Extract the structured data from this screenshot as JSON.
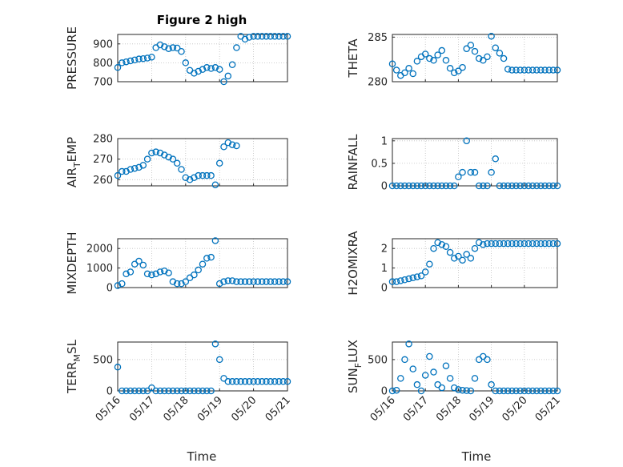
{
  "figure": {
    "title": "Figure 2 high",
    "xlabel": "Time",
    "marker_color": "#0072BD",
    "grid": "dotted",
    "x_tick_labels": [
      "05/16",
      "05/17",
      "05/18",
      "05/19",
      "05/20",
      "05/21"
    ]
  },
  "chart_data": [
    {
      "type": "scatter",
      "ylabel": "PRESSURE",
      "ylabel_sub": "",
      "ylabel_tail": "",
      "ylim": [
        700,
        950
      ],
      "yticks": [
        700,
        800,
        900
      ],
      "x": [
        0.0,
        0.125,
        0.25,
        0.375,
        0.5,
        0.625,
        0.75,
        0.875,
        1.0,
        1.125,
        1.25,
        1.375,
        1.5,
        1.625,
        1.75,
        1.875,
        2.0,
        2.125,
        2.25,
        2.375,
        2.5,
        2.625,
        2.75,
        2.875,
        3.0,
        3.125,
        3.25,
        3.375,
        3.5,
        3.625,
        3.75,
        3.875,
        4.0,
        4.125,
        4.25,
        4.375,
        4.5,
        4.625,
        4.75,
        4.875,
        5.0
      ],
      "y": [
        775,
        800,
        805,
        810,
        815,
        820,
        822,
        825,
        830,
        880,
        895,
        885,
        875,
        880,
        878,
        860,
        800,
        760,
        745,
        755,
        765,
        775,
        770,
        775,
        765,
        700,
        730,
        790,
        880,
        940,
        925,
        935,
        940,
        940,
        940,
        940,
        940,
        940,
        940,
        940,
        940
      ]
    },
    {
      "type": "scatter",
      "ylabel": "THETA",
      "ylabel_sub": "",
      "ylabel_tail": "",
      "ylim": [
        280,
        285.3
      ],
      "yticks": [
        280,
        285
      ],
      "x": [
        0.0,
        0.125,
        0.25,
        0.375,
        0.5,
        0.625,
        0.75,
        0.875,
        1.0,
        1.125,
        1.25,
        1.375,
        1.5,
        1.625,
        1.75,
        1.875,
        2.0,
        2.125,
        2.25,
        2.375,
        2.5,
        2.625,
        2.75,
        2.875,
        3.0,
        3.125,
        3.25,
        3.375,
        3.5,
        3.625,
        3.75,
        3.875,
        4.0,
        4.125,
        4.25,
        4.375,
        4.5,
        4.625,
        4.75,
        4.875,
        5.0
      ],
      "y": [
        282.0,
        281.3,
        280.7,
        281.0,
        281.5,
        280.9,
        282.3,
        282.8,
        283.1,
        282.6,
        282.4,
        283.0,
        283.5,
        282.4,
        281.5,
        281.0,
        281.2,
        281.6,
        283.7,
        284.1,
        283.4,
        282.6,
        282.4,
        282.8,
        285.1,
        283.8,
        283.2,
        282.6,
        281.4,
        281.3,
        281.3,
        281.3,
        281.3,
        281.3,
        281.3,
        281.3,
        281.3,
        281.3,
        281.3,
        281.3,
        281.3
      ]
    },
    {
      "type": "scatter",
      "ylabel": "AIR",
      "ylabel_sub": "T",
      "ylabel_tail": "EMP",
      "ylim": [
        257,
        280
      ],
      "yticks": [
        260,
        270,
        280
      ],
      "x": [
        0.0,
        0.125,
        0.25,
        0.375,
        0.5,
        0.625,
        0.75,
        0.875,
        1.0,
        1.125,
        1.25,
        1.375,
        1.5,
        1.625,
        1.75,
        1.875,
        2.0,
        2.125,
        2.25,
        2.375,
        2.5,
        2.625,
        2.75,
        2.875,
        3.0,
        3.125,
        3.25,
        3.375,
        3.5
      ],
      "y": [
        262,
        264,
        264,
        265,
        265.5,
        266,
        267,
        270,
        273,
        273.5,
        273,
        272,
        271,
        270,
        268,
        265,
        261,
        260,
        261,
        262,
        262,
        262,
        262,
        257.5,
        268,
        276,
        278,
        277,
        276.5
      ]
    },
    {
      "type": "scatter",
      "ylabel": "RAINFALL",
      "ylabel_sub": "",
      "ylabel_tail": "",
      "ylim": [
        0,
        1.05
      ],
      "yticks": [
        0,
        0.5,
        1
      ],
      "x": [
        0.0,
        0.125,
        0.25,
        0.375,
        0.5,
        0.625,
        0.75,
        0.875,
        1.0,
        1.125,
        1.25,
        1.375,
        1.5,
        1.625,
        1.75,
        1.875,
        2.0,
        2.125,
        2.25,
        2.375,
        2.5,
        2.625,
        2.75,
        2.875,
        3.0,
        3.125,
        3.25,
        3.375,
        3.5,
        3.625,
        3.75,
        3.875,
        4.0,
        4.125,
        4.25,
        4.375,
        4.5,
        4.625,
        4.75,
        4.875,
        5.0
      ],
      "y": [
        0,
        0,
        0,
        0,
        0,
        0,
        0,
        0,
        0,
        0,
        0,
        0,
        0,
        0,
        0,
        0,
        0.2,
        0.3,
        1.0,
        0.3,
        0.3,
        0,
        0,
        0,
        0.3,
        0.6,
        0,
        0,
        0,
        0,
        0,
        0,
        0,
        0,
        0,
        0,
        0,
        0,
        0,
        0,
        0
      ]
    },
    {
      "type": "scatter",
      "ylabel": "MIXDEPTH",
      "ylabel_sub": "",
      "ylabel_tail": "",
      "ylim": [
        0,
        2500
      ],
      "yticks": [
        0,
        1000,
        2000
      ],
      "x": [
        0.0,
        0.125,
        0.25,
        0.375,
        0.5,
        0.625,
        0.75,
        0.875,
        1.0,
        1.125,
        1.25,
        1.375,
        1.5,
        1.625,
        1.75,
        1.875,
        2.0,
        2.125,
        2.25,
        2.375,
        2.5,
        2.625,
        2.75,
        2.875,
        3.0,
        3.125,
        3.25,
        3.375,
        3.5,
        3.625,
        3.75,
        3.875,
        4.0,
        4.125,
        4.25,
        4.375,
        4.5,
        4.625,
        4.75,
        4.875,
        5.0
      ],
      "y": [
        100,
        200,
        700,
        800,
        1200,
        1350,
        1150,
        700,
        650,
        700,
        800,
        850,
        750,
        300,
        200,
        200,
        300,
        500,
        650,
        900,
        1200,
        1500,
        1550,
        2400,
        200,
        300,
        350,
        350,
        300,
        300,
        300,
        300,
        300,
        300,
        300,
        300,
        300,
        300,
        300,
        300,
        300
      ]
    },
    {
      "type": "scatter",
      "ylabel": "H2OMIXRA",
      "ylabel_sub": "",
      "ylabel_tail": "",
      "ylim": [
        0,
        2.5
      ],
      "yticks": [
        0,
        1,
        2
      ],
      "x": [
        0.0,
        0.125,
        0.25,
        0.375,
        0.5,
        0.625,
        0.75,
        0.875,
        1.0,
        1.125,
        1.25,
        1.375,
        1.5,
        1.625,
        1.75,
        1.875,
        2.0,
        2.125,
        2.25,
        2.375,
        2.5,
        2.625,
        2.75,
        2.875,
        3.0,
        3.125,
        3.25,
        3.375,
        3.5,
        3.625,
        3.75,
        3.875,
        4.0,
        4.125,
        4.25,
        4.375,
        4.5,
        4.625,
        4.75,
        4.875,
        5.0
      ],
      "y": [
        0.3,
        0.3,
        0.35,
        0.4,
        0.45,
        0.5,
        0.55,
        0.6,
        0.8,
        1.2,
        2.0,
        2.3,
        2.2,
        2.1,
        1.8,
        1.5,
        1.6,
        1.4,
        1.7,
        1.5,
        2.0,
        2.3,
        2.2,
        2.25,
        2.25,
        2.25,
        2.25,
        2.25,
        2.25,
        2.25,
        2.25,
        2.25,
        2.25,
        2.25,
        2.25,
        2.25,
        2.25,
        2.25,
        2.25,
        2.25,
        2.25
      ]
    },
    {
      "type": "scatter",
      "ylabel": "TERR",
      "ylabel_sub": "M",
      "ylabel_tail": "SL",
      "ylim": [
        0,
        780
      ],
      "yticks": [
        0,
        500
      ],
      "x": [
        0.0,
        0.125,
        0.25,
        0.375,
        0.5,
        0.625,
        0.75,
        0.875,
        1.0,
        1.125,
        1.25,
        1.375,
        1.5,
        1.625,
        1.75,
        1.875,
        2.0,
        2.125,
        2.25,
        2.375,
        2.5,
        2.625,
        2.75,
        2.875,
        3.0,
        3.125,
        3.25,
        3.375,
        3.5,
        3.625,
        3.75,
        3.875,
        4.0,
        4.125,
        4.25,
        4.375,
        4.5,
        4.625,
        4.75,
        4.875,
        5.0
      ],
      "y": [
        380,
        0,
        0,
        0,
        0,
        0,
        0,
        0,
        50,
        0,
        0,
        0,
        0,
        0,
        0,
        0,
        0,
        0,
        0,
        0,
        0,
        0,
        0,
        750,
        500,
        200,
        150,
        150,
        150,
        150,
        150,
        150,
        150,
        150,
        150,
        150,
        150,
        150,
        150,
        150,
        150
      ]
    },
    {
      "type": "scatter",
      "ylabel": "SUN",
      "ylabel_sub": "F",
      "ylabel_tail": "LUX",
      "ylim": [
        0,
        780
      ],
      "yticks": [
        0,
        500
      ],
      "x": [
        0.0,
        0.125,
        0.25,
        0.375,
        0.5,
        0.625,
        0.75,
        0.875,
        1.0,
        1.125,
        1.25,
        1.375,
        1.5,
        1.625,
        1.75,
        1.875,
        2.0,
        2.125,
        2.25,
        2.375,
        2.5,
        2.625,
        2.75,
        2.875,
        3.0,
        3.125,
        3.25,
        3.375,
        3.5,
        3.625,
        3.75,
        3.875,
        4.0,
        4.125,
        4.25,
        4.375,
        4.5,
        4.625,
        4.75,
        4.875,
        5.0
      ],
      "y": [
        0,
        10,
        200,
        500,
        750,
        350,
        100,
        0,
        250,
        550,
        300,
        100,
        50,
        400,
        200,
        50,
        20,
        10,
        5,
        0,
        200,
        500,
        550,
        500,
        100,
        0,
        0,
        0,
        0,
        0,
        0,
        0,
        0,
        0,
        0,
        0,
        0,
        0,
        0,
        0,
        0
      ]
    }
  ]
}
